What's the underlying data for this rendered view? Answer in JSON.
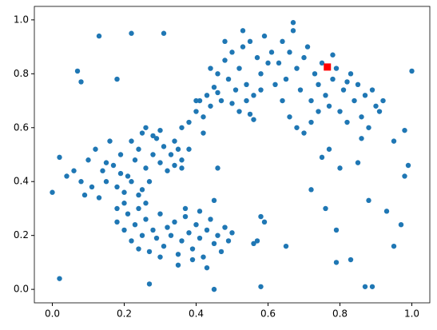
{
  "chart_data": {
    "type": "scatter",
    "color": "#1f77b4",
    "x": [
      0.0,
      0.02,
      0.02,
      0.13,
      0.22,
      0.31,
      0.07,
      0.08,
      0.18,
      0.27,
      0.45,
      0.58,
      0.87,
      0.89,
      0.65,
      0.56,
      0.57,
      0.72,
      0.76,
      0.79,
      0.79,
      0.83,
      0.88,
      0.93,
      0.95,
      0.97,
      0.98,
      0.99,
      0.98,
      1.0,
      0.95,
      0.8,
      0.85,
      0.77,
      0.75,
      0.59,
      0.58,
      0.45,
      0.46,
      0.04,
      0.1,
      0.12,
      0.14,
      0.15,
      0.17,
      0.18,
      0.19,
      0.2,
      0.21,
      0.22,
      0.23,
      0.24,
      0.25,
      0.26,
      0.27,
      0.28,
      0.29,
      0.3,
      0.31,
      0.32,
      0.11,
      0.13,
      0.16,
      0.18,
      0.2,
      0.22,
      0.24,
      0.26,
      0.28,
      0.3,
      0.33,
      0.34,
      0.35,
      0.36,
      0.06,
      0.08,
      0.09,
      0.15,
      0.19,
      0.25,
      0.18,
      0.2,
      0.21,
      0.22,
      0.23,
      0.24,
      0.25,
      0.26,
      0.27,
      0.28,
      0.29,
      0.3,
      0.31,
      0.32,
      0.33,
      0.34,
      0.35,
      0.36,
      0.37,
      0.38,
      0.39,
      0.4,
      0.41,
      0.42,
      0.43,
      0.44,
      0.45,
      0.46,
      0.47,
      0.48,
      0.49,
      0.5,
      0.35,
      0.37,
      0.39,
      0.41,
      0.43,
      0.3,
      0.26,
      0.24,
      0.34,
      0.36,
      0.38,
      0.4,
      0.41,
      0.42,
      0.43,
      0.44,
      0.45,
      0.46,
      0.47,
      0.48,
      0.49,
      0.5,
      0.51,
      0.52,
      0.53,
      0.54,
      0.55,
      0.56,
      0.57,
      0.58,
      0.59,
      0.6,
      0.61,
      0.62,
      0.44,
      0.46,
      0.48,
      0.5,
      0.52,
      0.54,
      0.56,
      0.58,
      0.4,
      0.42,
      0.38,
      0.36,
      0.53,
      0.55,
      0.63,
      0.64,
      0.65,
      0.66,
      0.67,
      0.68,
      0.69,
      0.7,
      0.71,
      0.72,
      0.73,
      0.74,
      0.75,
      0.76,
      0.77,
      0.78,
      0.79,
      0.8,
      0.81,
      0.82,
      0.83,
      0.84,
      0.85,
      0.86,
      0.87,
      0.88,
      0.89,
      0.9,
      0.91,
      0.92,
      0.66,
      0.68,
      0.7,
      0.72,
      0.74,
      0.78,
      0.82,
      0.86,
      0.64,
      0.67
    ],
    "values": [
      0.36,
      0.04,
      0.49,
      0.94,
      0.95,
      0.95,
      0.81,
      0.77,
      0.78,
      0.02,
      0.0,
      0.01,
      0.01,
      0.01,
      0.16,
      0.17,
      0.18,
      0.37,
      0.3,
      0.22,
      0.1,
      0.11,
      0.33,
      0.29,
      0.16,
      0.24,
      0.42,
      0.46,
      0.59,
      0.81,
      0.55,
      0.45,
      0.47,
      0.52,
      0.49,
      0.25,
      0.27,
      0.33,
      0.45,
      0.42,
      0.48,
      0.52,
      0.44,
      0.4,
      0.46,
      0.38,
      0.5,
      0.36,
      0.42,
      0.55,
      0.48,
      0.52,
      0.58,
      0.45,
      0.4,
      0.5,
      0.56,
      0.47,
      0.53,
      0.44,
      0.38,
      0.34,
      0.55,
      0.3,
      0.32,
      0.4,
      0.35,
      0.6,
      0.57,
      0.59,
      0.5,
      0.46,
      0.52,
      0.45,
      0.44,
      0.4,
      0.35,
      0.47,
      0.43,
      0.37,
      0.25,
      0.22,
      0.28,
      0.18,
      0.24,
      0.15,
      0.2,
      0.26,
      0.14,
      0.22,
      0.19,
      0.28,
      0.16,
      0.23,
      0.2,
      0.25,
      0.13,
      0.18,
      0.27,
      0.21,
      0.15,
      0.24,
      0.19,
      0.12,
      0.22,
      0.26,
      0.17,
      0.2,
      0.14,
      0.23,
      0.18,
      0.21,
      0.09,
      0.3,
      0.11,
      0.29,
      0.08,
      0.12,
      0.32,
      0.3,
      0.55,
      0.6,
      0.62,
      0.66,
      0.7,
      0.64,
      0.72,
      0.68,
      0.75,
      0.8,
      0.7,
      0.85,
      0.78,
      0.88,
      0.74,
      0.82,
      0.9,
      0.76,
      0.92,
      0.72,
      0.86,
      0.8,
      0.94,
      0.84,
      0.88,
      0.76,
      0.82,
      0.73,
      0.92,
      0.69,
      0.66,
      0.7,
      0.63,
      0.74,
      0.7,
      0.58,
      0.52,
      0.48,
      0.96,
      0.65,
      0.84,
      0.92,
      0.78,
      0.88,
      0.99,
      0.82,
      0.74,
      0.86,
      0.9,
      0.7,
      0.8,
      0.76,
      0.84,
      0.72,
      0.68,
      0.78,
      0.82,
      0.66,
      0.74,
      0.62,
      0.8,
      0.7,
      0.76,
      0.64,
      0.72,
      0.6,
      0.74,
      0.68,
      0.66,
      0.7,
      0.64,
      0.6,
      0.58,
      0.62,
      0.66,
      0.87,
      0.77,
      0.56,
      0.7,
      0.96
    ],
    "highlight": {
      "x": 0.765,
      "y": 0.825,
      "color": "#ff0000"
    },
    "xlim": [
      -0.05,
      1.05
    ],
    "ylim": [
      -0.05,
      1.05
    ],
    "xticks": [
      {
        "value": 0,
        "label": "0.0"
      },
      {
        "value": 0.2,
        "label": "0.2"
      },
      {
        "value": 0.4,
        "label": "0.4"
      },
      {
        "value": 0.6,
        "label": "0.6"
      },
      {
        "value": 0.8,
        "label": "0.8"
      },
      {
        "value": 1,
        "label": "1.0"
      }
    ],
    "yticks": [
      {
        "value": 0,
        "label": "0.0"
      },
      {
        "value": 0.2,
        "label": "0.2"
      },
      {
        "value": 0.4,
        "label": "0.4"
      },
      {
        "value": 0.6,
        "label": "0.6"
      },
      {
        "value": 0.8,
        "label": "0.8"
      },
      {
        "value": 1,
        "label": "1.0"
      }
    ],
    "grid": false
  }
}
